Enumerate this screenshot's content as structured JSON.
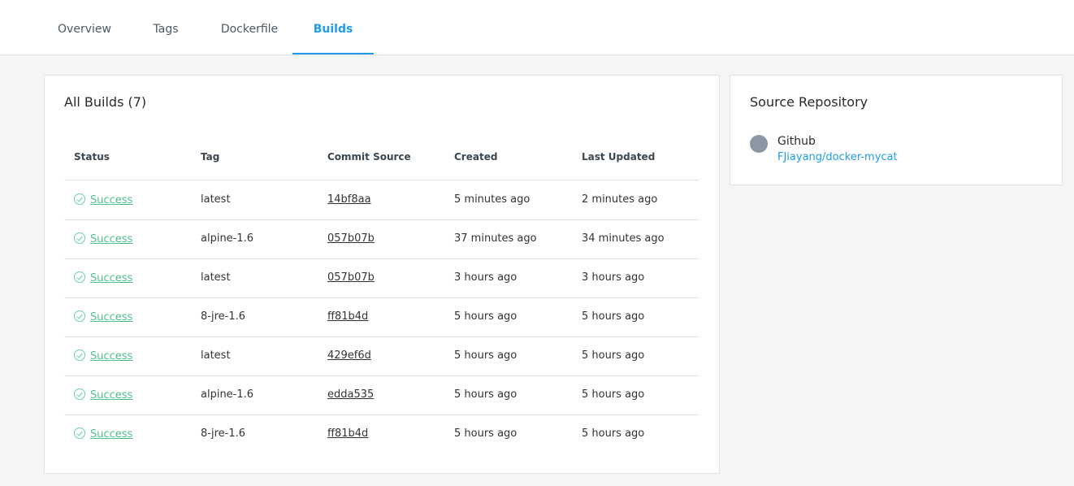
{
  "tabs": [
    {
      "label": "Overview"
    },
    {
      "label": "Tags"
    },
    {
      "label": "Dockerfile"
    },
    {
      "label": "Builds",
      "active": true
    }
  ],
  "builds": {
    "title": "All Builds (7)",
    "columns": [
      "Status",
      "Tag",
      "Commit Source",
      "Created",
      "Last Updated"
    ],
    "rows": [
      {
        "status": "Success",
        "tag": "latest",
        "commit": "14bf8aa",
        "created": "5 minutes ago",
        "updated": "2 minutes ago"
      },
      {
        "status": "Success",
        "tag": "alpine-1.6",
        "commit": "057b07b",
        "created": "37 minutes ago",
        "updated": "34 minutes ago"
      },
      {
        "status": "Success",
        "tag": "latest",
        "commit": "057b07b",
        "created": "3 hours ago",
        "updated": "3 hours ago"
      },
      {
        "status": "Success",
        "tag": "8-jre-1.6",
        "commit": "ff81b4d",
        "created": "5 hours ago",
        "updated": "5 hours ago"
      },
      {
        "status": "Success",
        "tag": "latest",
        "commit": "429ef6d",
        "created": "5 hours ago",
        "updated": "5 hours ago"
      },
      {
        "status": "Success",
        "tag": "alpine-1.6",
        "commit": "edda535",
        "created": "5 hours ago",
        "updated": "5 hours ago"
      },
      {
        "status": "Success",
        "tag": "8-jre-1.6",
        "commit": "ff81b4d",
        "created": "5 hours ago",
        "updated": "5 hours ago"
      }
    ]
  },
  "source": {
    "title": "Source Repository",
    "provider": "Github",
    "provider_icon": "github-icon",
    "repo": "FJiayang/docker-mycat"
  },
  "colors": {
    "accent": "#1f9be9",
    "success": "#4dbf8d"
  }
}
